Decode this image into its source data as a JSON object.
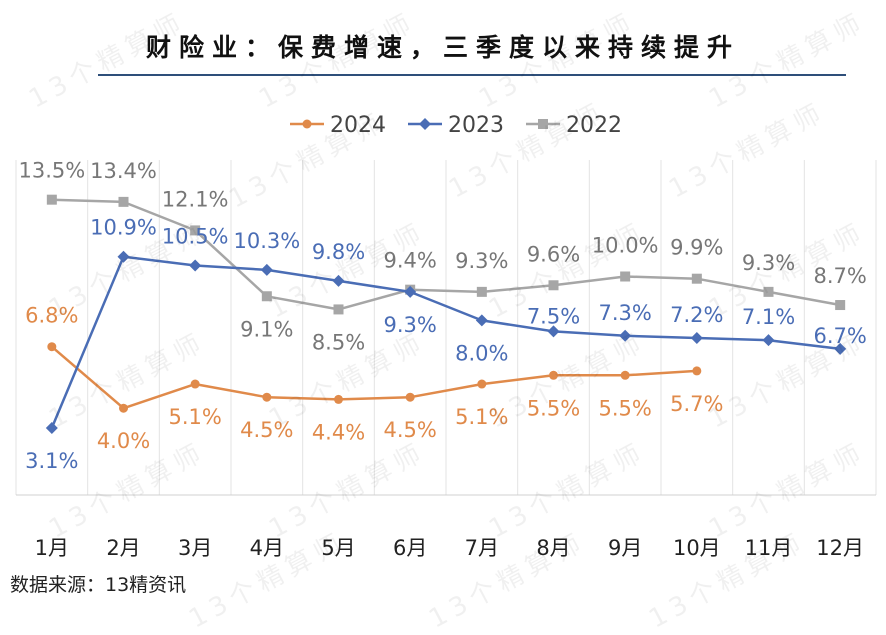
{
  "chart_data": {
    "type": "line",
    "title": "财险业：保费增速，三季度以来持续提升",
    "source": "数据来源：13精资讯",
    "watermark": "13个精算师",
    "categories": [
      "1月",
      "2月",
      "3月",
      "4月",
      "5月",
      "6月",
      "7月",
      "8月",
      "9月",
      "10月",
      "11月",
      "12月"
    ],
    "ylim": [
      0,
      15
    ],
    "grid": "vertical",
    "legend_position": "top",
    "series": [
      {
        "name": "2024",
        "color": "#E08A4A",
        "marker": "circle",
        "values": [
          6.8,
          4.0,
          5.1,
          4.5,
          4.4,
          4.5,
          5.1,
          5.5,
          5.5,
          5.7,
          null,
          null
        ],
        "labels": [
          "6.8%",
          "4.0%",
          "5.1%",
          "4.5%",
          "4.4%",
          "4.5%",
          "5.1%",
          "5.5%",
          "5.5%",
          "5.7%",
          "",
          ""
        ]
      },
      {
        "name": "2023",
        "color": "#4A6DB5",
        "marker": "diamond",
        "values": [
          3.1,
          10.9,
          10.5,
          10.3,
          9.8,
          9.3,
          8.0,
          7.5,
          7.3,
          7.2,
          7.1,
          6.7
        ],
        "labels": [
          "3.1%",
          "10.9%",
          "10.5%",
          "10.3%",
          "9.8%",
          "9.3%",
          "8.0%",
          "7.5%",
          "7.3%",
          "7.2%",
          "7.1%",
          "6.7%"
        ]
      },
      {
        "name": "2022",
        "color": "#A6A6A6",
        "marker": "square",
        "values": [
          13.5,
          13.4,
          12.1,
          9.1,
          8.5,
          9.4,
          9.3,
          9.6,
          10.0,
          9.9,
          9.3,
          8.7
        ],
        "labels": [
          "13.5%",
          "13.4%",
          "12.1%",
          "9.1%",
          "8.5%",
          "9.4%",
          "9.3%",
          "9.6%",
          "10.0%",
          "9.9%",
          "9.3%",
          "8.7%"
        ]
      }
    ]
  }
}
